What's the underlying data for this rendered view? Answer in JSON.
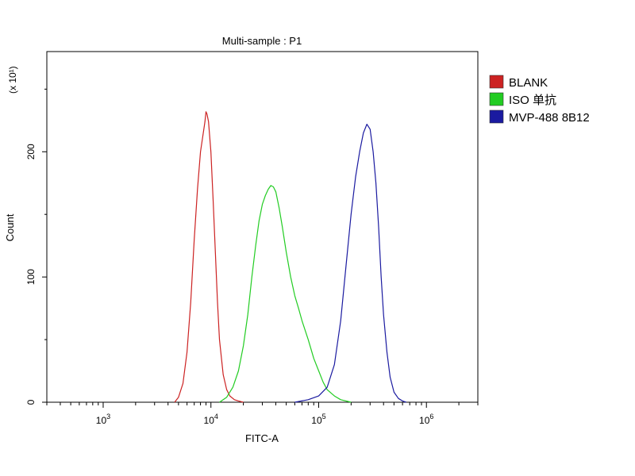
{
  "chart_data": {
    "type": "line",
    "title": "Multi-sample : P1",
    "xlabel": "FITC-A",
    "ylabel": "Count",
    "y_multiplier": "(x 10¹)",
    "x_scale": "log",
    "xlim": [
      300,
      3000000
    ],
    "ylim": [
      0,
      280
    ],
    "x_tick_labels": [
      {
        "base": "10",
        "exp": "3",
        "value": 1000
      },
      {
        "base": "10",
        "exp": "4",
        "value": 10000
      },
      {
        "base": "10",
        "exp": "5",
        "value": 100000
      },
      {
        "base": "10",
        "exp": "6",
        "value": 1000000
      }
    ],
    "y_ticks": [
      {
        "label": "0",
        "value": 0
      },
      {
        "label": "100",
        "value": 100
      },
      {
        "label": "200",
        "value": 200
      }
    ],
    "legend_position": "right",
    "series": [
      {
        "name": "BLANK",
        "color": "#cc2222",
        "x": [
          4600,
          5000,
          5500,
          6000,
          6500,
          7000,
          7500,
          8000,
          8500,
          8800,
          9000,
          9200,
          9500,
          10000,
          10500,
          11000,
          11500,
          12000,
          13000,
          14000,
          15000,
          16500,
          18000,
          20000
        ],
        "y": [
          0,
          4,
          15,
          40,
          80,
          130,
          170,
          200,
          215,
          224,
          232,
          230,
          224,
          200,
          160,
          120,
          80,
          50,
          22,
          10,
          5,
          2,
          1,
          0
        ]
      },
      {
        "name": "ISO 单抗",
        "color": "#22cc22",
        "x": [
          12000,
          14000,
          16000,
          18000,
          20000,
          22000,
          24000,
          26000,
          28000,
          30000,
          32000,
          34000,
          36000,
          38000,
          40000,
          43000,
          46000,
          50000,
          55000,
          60000,
          65000,
          70000,
          80000,
          90000,
          100000,
          110000,
          120000,
          140000,
          160000,
          200000
        ],
        "y": [
          0,
          4,
          12,
          25,
          45,
          70,
          100,
          125,
          145,
          158,
          165,
          170,
          173,
          172,
          168,
          155,
          140,
          120,
          100,
          85,
          75,
          65,
          50,
          35,
          25,
          16,
          10,
          5,
          2,
          0
        ]
      },
      {
        "name": "MVP-488 8B12",
        "color": "#1a1aa0",
        "x": [
          60000,
          80000,
          100000,
          120000,
          140000,
          160000,
          180000,
          200000,
          220000,
          240000,
          260000,
          280000,
          300000,
          320000,
          340000,
          360000,
          380000,
          400000,
          430000,
          460000,
          500000,
          550000,
          600000,
          650000
        ],
        "y": [
          0,
          2,
          5,
          12,
          30,
          65,
          110,
          150,
          180,
          200,
          215,
          222,
          218,
          200,
          175,
          140,
          100,
          70,
          40,
          20,
          8,
          3,
          1,
          0
        ]
      }
    ]
  }
}
